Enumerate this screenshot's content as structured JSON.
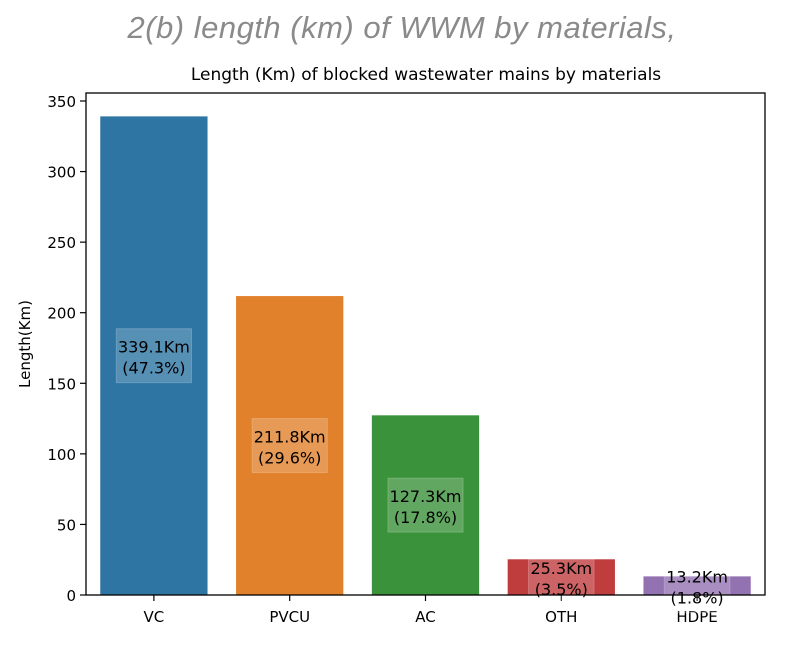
{
  "heading": "2(b) length (km) of WWM by materials,",
  "chart_data": {
    "type": "bar",
    "title": "Length (Km) of blocked wastewater mains by materials",
    "xlabel": "",
    "ylabel": "Length(Km)",
    "ylim": [
      0,
      350
    ],
    "yticks": [
      "0",
      "50",
      "100",
      "150",
      "200",
      "250",
      "300",
      "350"
    ],
    "categories": [
      "VC",
      "PVCU",
      "AC",
      "OTH",
      "HDPE"
    ],
    "values": [
      339.1,
      211.8,
      127.3,
      25.3,
      13.2
    ],
    "data_labels": [
      [
        "339.1Km",
        "(47.3%)"
      ],
      [
        "211.8Km",
        "(29.6%)"
      ],
      [
        "127.3Km",
        "(17.8%)"
      ],
      [
        "25.3Km",
        "(3.5%)"
      ],
      [
        "13.2Km",
        "(1.8%)"
      ]
    ],
    "colors": [
      "#2e75a3",
      "#e1812c",
      "#3a923a",
      "#c03d3e",
      "#9372b2"
    ],
    "grid": false,
    "legend": "none"
  }
}
